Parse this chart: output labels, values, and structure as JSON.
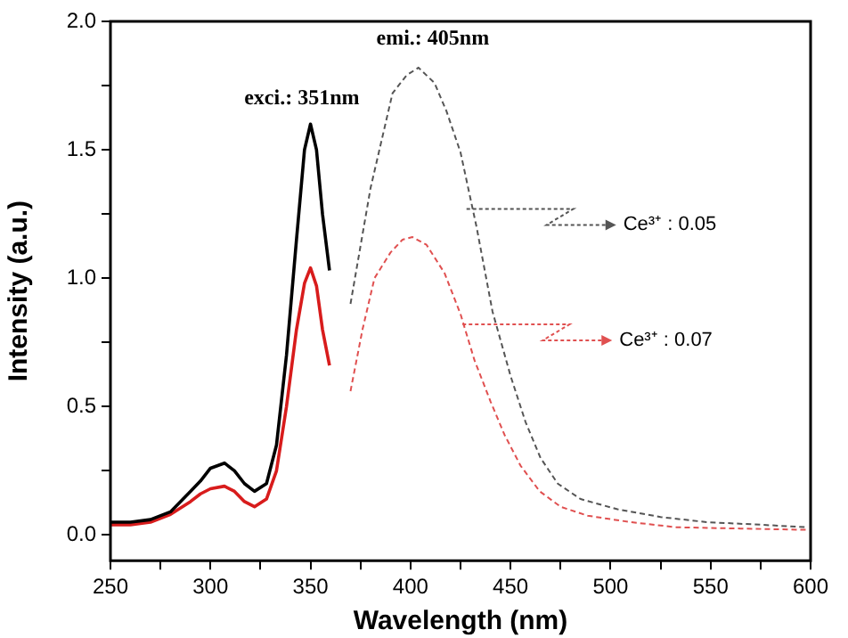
{
  "chart_data": {
    "type": "line",
    "xlabel": "Wavelength (nm)",
    "ylabel": "Intensity (a.u.)",
    "xlim": [
      250,
      600
    ],
    "ylim": [
      -0.1,
      2.0
    ],
    "xticks": [
      250,
      {
        "value": 275,
        "label": null
      },
      300,
      {
        "value": 325,
        "label": null
      },
      350,
      {
        "value": 375,
        "label": null
      },
      400,
      {
        "value": 425,
        "label": null
      },
      450,
      {
        "value": 475,
        "label": null
      },
      500,
      {
        "value": 525,
        "label": null
      },
      550,
      {
        "value": 575,
        "label": null
      },
      600
    ],
    "yticks": [
      {
        "value": 0,
        "label": "0.0"
      },
      {
        "value": 0.25,
        "label": null
      },
      {
        "value": 0.5,
        "label": "0.5"
      },
      {
        "value": 0.75,
        "label": null
      },
      {
        "value": 1,
        "label": "1.0"
      },
      {
        "value": 1.25,
        "label": null
      },
      {
        "value": 1.5,
        "label": "1.5"
      },
      {
        "value": 1.75,
        "label": null
      },
      {
        "value": 2,
        "label": "2.0"
      }
    ],
    "grid": false,
    "legend": false,
    "marker": "none",
    "series": [
      {
        "color": "#000000",
        "line_style": "solid",
        "x": [
          250,
          260,
          270,
          280,
          290,
          295,
          300,
          307,
          312,
          317,
          322,
          328,
          333,
          338,
          343,
          347,
          350,
          353,
          356,
          359.5
        ],
        "values": [
          0.05,
          0.05,
          0.06,
          0.09,
          0.17,
          0.21,
          0.26,
          0.28,
          0.25,
          0.2,
          0.17,
          0.2,
          0.35,
          0.7,
          1.15,
          1.5,
          1.6,
          1.5,
          1.25,
          1.03
        ]
      },
      {
        "color": "#d81c1c",
        "line_style": "solid",
        "x": [
          250,
          260,
          270,
          280,
          290,
          295,
          300,
          307,
          312,
          317,
          322,
          328,
          333,
          338,
          343,
          347,
          350,
          353,
          356,
          359.5
        ],
        "values": [
          0.04,
          0.04,
          0.05,
          0.08,
          0.13,
          0.16,
          0.18,
          0.19,
          0.17,
          0.13,
          0.11,
          0.14,
          0.25,
          0.5,
          0.8,
          0.98,
          1.04,
          0.97,
          0.8,
          0.66
        ]
      },
      {
        "color": "#555555",
        "line_style": "dashed",
        "x": [
          370,
          380,
          391,
          398,
          404,
          412,
          418,
          425,
          433,
          441,
          450,
          457.5,
          465,
          473.6,
          485,
          503.5,
          525,
          548,
          575,
          598
        ],
        "values": [
          0.9,
          1.35,
          1.72,
          1.79,
          1.82,
          1.76,
          1.65,
          1.49,
          1.2,
          0.87,
          0.62,
          0.44,
          0.3,
          0.2,
          0.14,
          0.1,
          0.07,
          0.05,
          0.04,
          0.03
        ]
      },
      {
        "color": "#e05050",
        "line_style": "dashed",
        "x": [
          370,
          376,
          382,
          390,
          396,
          401,
          408,
          417,
          425,
          432,
          440,
          447,
          455,
          464.6,
          475,
          488.6,
          510,
          533,
          565,
          598
        ],
        "values": [
          0.56,
          0.8,
          1.0,
          1.1,
          1.15,
          1.16,
          1.13,
          1.02,
          0.86,
          0.68,
          0.52,
          0.39,
          0.27,
          0.17,
          0.11,
          0.075,
          0.05,
          0.03,
          0.025,
          0.02
        ]
      }
    ],
    "annotations": [
      {
        "text": "exci.: 351nm",
        "x": 351,
        "y": 1.6
      },
      {
        "text": "emi.: 405nm",
        "x": 404,
        "y": 1.82
      },
      {
        "text": "Ce³⁺ : 0.05",
        "x": 428,
        "y": 1.27
      },
      {
        "text": "Ce³⁺ : 0.07",
        "x": 426,
        "y": 0.82
      }
    ]
  }
}
